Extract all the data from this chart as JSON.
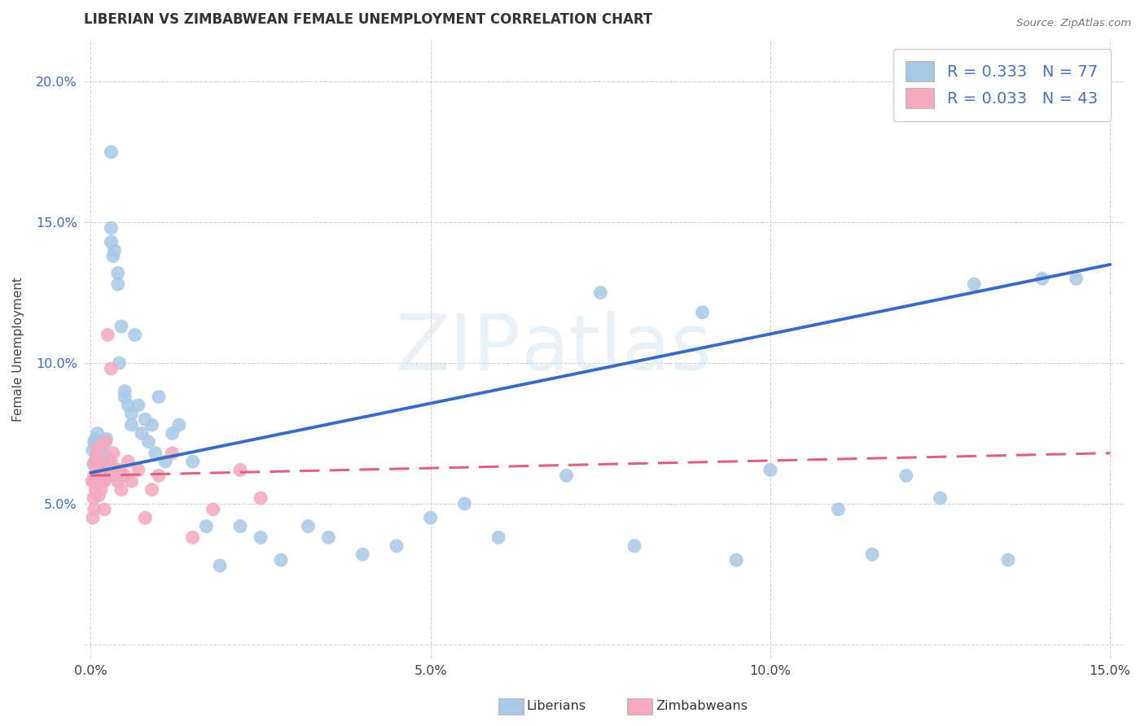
{
  "title": "LIBERIAN VS ZIMBABWEAN FEMALE UNEMPLOYMENT CORRELATION CHART",
  "source": "Source: ZipAtlas.com",
  "xlabel_lib": "Liberians",
  "xlabel_zim": "Zimbabweans",
  "ylabel": "Female Unemployment",
  "xlim": [
    -0.001,
    0.152
  ],
  "ylim": [
    -0.005,
    0.215
  ],
  "xticks": [
    0.0,
    0.05,
    0.1,
    0.15
  ],
  "xtick_labels": [
    "0.0%",
    "5.0%",
    "10.0%",
    "15.0%"
  ],
  "yticks": [
    0.0,
    0.05,
    0.1,
    0.15,
    0.2
  ],
  "ytick_labels": [
    "",
    "5.0%",
    "10.0%",
    "15.0%",
    "20.0%"
  ],
  "liberian_color": "#a8c8e8",
  "zimbabwean_color": "#f5a8be",
  "liberian_line_color": "#3a6bc4",
  "zimbabwean_line_color": "#e06080",
  "background_color": "#ffffff",
  "grid_color": "#cccccc",
  "legend_text_color": "#4472c4",
  "legend_n_color": "#4472c4",
  "R_lib": 0.333,
  "N_lib": 77,
  "R_zim": 0.033,
  "N_zim": 43,
  "lib_trend_x0": 0.0,
  "lib_trend_x1": 0.15,
  "lib_trend_y0": 0.061,
  "lib_trend_y1": 0.135,
  "zim_trend_x0": 0.0,
  "zim_trend_x1": 0.15,
  "zim_trend_y0": 0.06,
  "zim_trend_y1": 0.068,
  "lib_x": [
    0.0003,
    0.0004,
    0.0005,
    0.0006,
    0.0006,
    0.0007,
    0.0008,
    0.0008,
    0.0009,
    0.001,
    0.001,
    0.001,
    0.0012,
    0.0013,
    0.0014,
    0.0015,
    0.0016,
    0.0017,
    0.0018,
    0.002,
    0.002,
    0.0022,
    0.0023,
    0.0025,
    0.0027,
    0.003,
    0.003,
    0.003,
    0.0033,
    0.0035,
    0.004,
    0.004,
    0.0042,
    0.0045,
    0.005,
    0.005,
    0.0055,
    0.006,
    0.006,
    0.0065,
    0.007,
    0.0075,
    0.008,
    0.0085,
    0.009,
    0.0095,
    0.01,
    0.011,
    0.012,
    0.013,
    0.015,
    0.017,
    0.019,
    0.022,
    0.025,
    0.028,
    0.032,
    0.035,
    0.04,
    0.045,
    0.05,
    0.055,
    0.06,
    0.07,
    0.075,
    0.08,
    0.09,
    0.095,
    0.1,
    0.11,
    0.115,
    0.12,
    0.125,
    0.13,
    0.135,
    0.14,
    0.145
  ],
  "lib_y": [
    0.069,
    0.064,
    0.072,
    0.058,
    0.065,
    0.073,
    0.058,
    0.063,
    0.068,
    0.062,
    0.067,
    0.075,
    0.06,
    0.063,
    0.07,
    0.065,
    0.062,
    0.058,
    0.068,
    0.063,
    0.072,
    0.067,
    0.073,
    0.06,
    0.065,
    0.175,
    0.148,
    0.143,
    0.138,
    0.14,
    0.132,
    0.128,
    0.1,
    0.113,
    0.09,
    0.088,
    0.085,
    0.082,
    0.078,
    0.11,
    0.085,
    0.075,
    0.08,
    0.072,
    0.078,
    0.068,
    0.088,
    0.065,
    0.075,
    0.078,
    0.065,
    0.042,
    0.028,
    0.042,
    0.038,
    0.03,
    0.042,
    0.038,
    0.032,
    0.035,
    0.045,
    0.05,
    0.038,
    0.06,
    0.125,
    0.035,
    0.118,
    0.03,
    0.062,
    0.048,
    0.032,
    0.06,
    0.052,
    0.128,
    0.03,
    0.13,
    0.13
  ],
  "zim_x": [
    0.0002,
    0.0003,
    0.0004,
    0.0005,
    0.0005,
    0.0006,
    0.0006,
    0.0007,
    0.0008,
    0.0008,
    0.0009,
    0.001,
    0.001,
    0.0011,
    0.0012,
    0.0013,
    0.0014,
    0.0015,
    0.0016,
    0.0018,
    0.002,
    0.002,
    0.0022,
    0.0025,
    0.003,
    0.003,
    0.0033,
    0.0035,
    0.004,
    0.0042,
    0.0045,
    0.005,
    0.0055,
    0.006,
    0.007,
    0.008,
    0.009,
    0.01,
    0.012,
    0.015,
    0.018,
    0.022,
    0.025
  ],
  "zim_y": [
    0.058,
    0.045,
    0.052,
    0.048,
    0.06,
    0.058,
    0.065,
    0.055,
    0.06,
    0.063,
    0.068,
    0.058,
    0.062,
    0.07,
    0.053,
    0.06,
    0.065,
    0.055,
    0.058,
    0.062,
    0.048,
    0.058,
    0.072,
    0.11,
    0.098,
    0.065,
    0.068,
    0.06,
    0.058,
    0.062,
    0.055,
    0.06,
    0.065,
    0.058,
    0.062,
    0.045,
    0.055,
    0.06,
    0.068,
    0.038,
    0.048,
    0.062,
    0.052
  ]
}
